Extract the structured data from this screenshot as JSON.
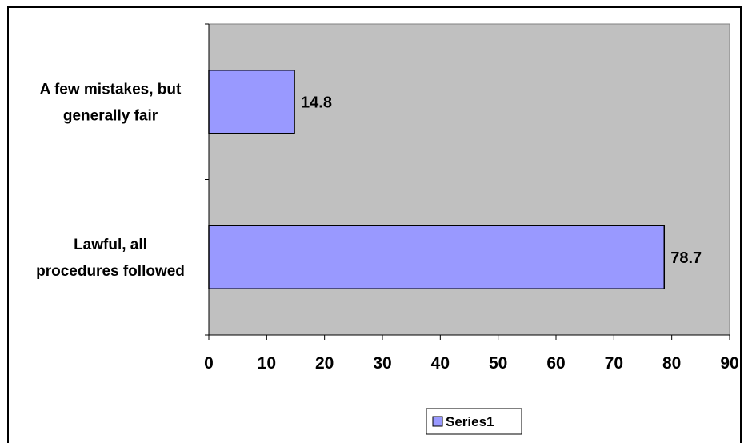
{
  "chart_data": {
    "type": "bar",
    "orientation": "horizontal",
    "categories": [
      "A few mistakes, but generally fair",
      "Lawful, all procedures followed"
    ],
    "category_lines": [
      [
        "A few mistakes, but",
        "generally fair"
      ],
      [
        "Lawful, all",
        "procedures followed"
      ]
    ],
    "series": [
      {
        "name": "Series1",
        "values": [
          14.8,
          78.7
        ]
      }
    ],
    "data_labels": [
      "14.8",
      "78.7"
    ],
    "x_ticks": [
      "0",
      "10",
      "20",
      "30",
      "40",
      "50",
      "60",
      "70",
      "80",
      "90"
    ],
    "xlim": [
      0,
      90
    ],
    "grid": false,
    "legend_position": "bottom",
    "colors": {
      "plot_background": "#c0c0c0",
      "bar_fill": "#9999ff",
      "bar_stroke": "#000000"
    }
  }
}
